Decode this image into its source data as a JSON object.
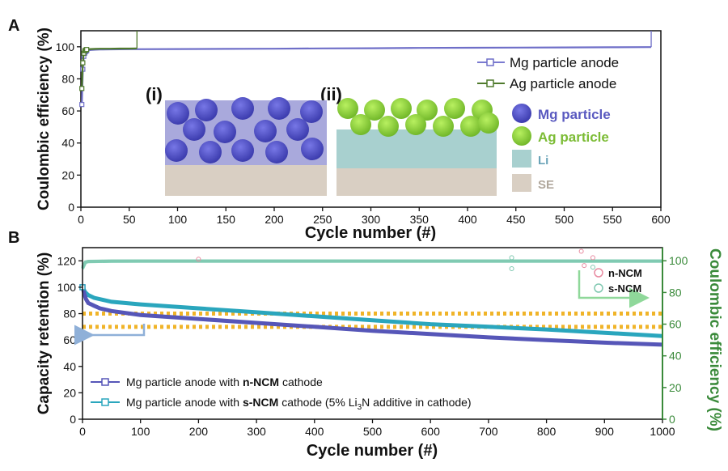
{
  "panels": {
    "a_label": "A",
    "b_label": "B"
  },
  "colors": {
    "mg": "#6f6fc8",
    "mg_dark": "#4b4bb0",
    "ag": "#4f7a2c",
    "ag_ball": "#8fd13a",
    "li": "#a8d0cf",
    "se": "#d9cfc3",
    "n_ncm": "#5656b8",
    "s_ncm": "#2aa6bd",
    "ce_line": "#72d6b6",
    "ce_axis": "#3a8a3a",
    "gold": "#f0b429",
    "arrow_blue": "#8fb0d8",
    "arrow_green": "#8fd89a",
    "n_marker": "#e88aa0",
    "s_marker": "#7fc8b0"
  },
  "chart_data": [
    {
      "type": "line",
      "panel": "A",
      "xlabel": "Cycle number (#)",
      "ylabel": "Coulombic efficiency (%)",
      "xlim": [
        0,
        600
      ],
      "ylim": [
        0,
        110
      ],
      "xticks": [
        0,
        50,
        100,
        150,
        200,
        250,
        300,
        350,
        400,
        450,
        500,
        550,
        600
      ],
      "yticks": [
        0,
        20,
        40,
        60,
        80,
        100
      ],
      "series": [
        {
          "name": "Mg particle anode",
          "x": [
            1,
            2,
            3,
            4,
            5,
            6,
            8,
            10,
            15,
            20,
            30,
            50,
            100,
            150,
            200,
            250,
            300,
            350,
            400,
            450,
            500,
            550,
            590
          ],
          "y": [
            64,
            86,
            94,
            96,
            97,
            97.5,
            97.8,
            98,
            98.2,
            98.3,
            98.4,
            98.5,
            98.6,
            98.7,
            98.8,
            99,
            99.1,
            99.3,
            99.4,
            99.5,
            99.6,
            99.7,
            99.8
          ]
        },
        {
          "name": "Ag particle anode",
          "x": [
            1,
            2,
            3,
            4,
            5,
            6,
            8,
            10,
            15,
            20,
            30,
            40,
            50,
            58
          ],
          "y": [
            74,
            90,
            96,
            97.5,
            98,
            98.3,
            98.5,
            98.6,
            98.7,
            98.8,
            98.8,
            98.9,
            98.9,
            99
          ]
        }
      ],
      "inset": {
        "label_i": "(i)",
        "label_ii": "(ii)",
        "legend": [
          "Mg particle",
          "Ag particle",
          "Li",
          "SE"
        ]
      }
    },
    {
      "type": "line",
      "panel": "B",
      "xlabel": "Cycle number (#)",
      "ylabel": "Capacity retention (%)",
      "y2label": "Coulombic efficiency (%)",
      "xlim": [
        0,
        1000
      ],
      "ylim": [
        0,
        130
      ],
      "y2lim": [
        0,
        108.3
      ],
      "xticks": [
        0,
        100,
        200,
        300,
        400,
        500,
        600,
        700,
        800,
        900,
        1000
      ],
      "yticks": [
        0,
        20,
        40,
        60,
        80,
        100,
        120
      ],
      "y2ticks": [
        0,
        20,
        40,
        60,
        80,
        100
      ],
      "series": [
        {
          "name": "Mg particle anode with n-NCM cathode",
          "legend_parts": [
            "Mg particle anode with ",
            "n-NCM",
            " cathode"
          ],
          "axis": "left",
          "x": [
            0,
            3,
            6,
            10,
            15,
            20,
            30,
            50,
            100,
            200,
            300,
            400,
            500,
            600,
            700,
            800,
            900,
            1000
          ],
          "y": [
            100,
            95,
            91,
            88,
            87,
            86,
            84,
            82,
            79,
            76,
            73,
            70,
            67,
            64.5,
            62,
            60,
            58,
            56.5
          ]
        },
        {
          "name": "Mg particle anode with s-NCM cathode (5% Li3N additive in cathode)",
          "legend_parts": [
            "Mg particle anode with ",
            "s-NCM",
            " cathode (5% Li",
            "3",
            "N additive in cathode)"
          ],
          "axis": "left",
          "x": [
            0,
            5,
            10,
            20,
            50,
            100,
            200,
            300,
            400,
            500,
            600,
            700,
            800,
            900,
            1000
          ],
          "y": [
            100,
            96,
            94,
            92,
            89,
            87,
            84,
            81,
            78,
            75,
            72,
            70,
            68,
            65.5,
            63
          ]
        },
        {
          "name": "n-NCM",
          "axis": "right",
          "x": [
            0,
            5,
            10,
            50,
            100,
            200,
            400,
            600,
            800,
            1000
          ],
          "y": [
            95,
            99,
            99.5,
            99.7,
            99.8,
            99.8,
            99.8,
            99.8,
            99.8,
            99.8
          ]
        },
        {
          "name": "s-NCM",
          "axis": "right",
          "x": [
            0,
            5,
            10,
            50,
            100,
            200,
            400,
            600,
            800,
            1000
          ],
          "y": [
            96,
            99.2,
            99.6,
            99.8,
            99.8,
            99.8,
            99.8,
            99.8,
            99.8,
            99.8
          ]
        }
      ],
      "outliers": [
        {
          "series": "n-NCM",
          "x": 200,
          "y": 101
        },
        {
          "series": "n-NCM",
          "x": 860,
          "y": 106
        },
        {
          "series": "n-NCM",
          "x": 880,
          "y": 102
        },
        {
          "series": "n-NCM",
          "x": 865,
          "y": 97
        },
        {
          "series": "s-NCM",
          "x": 740,
          "y": 102
        },
        {
          "series": "s-NCM",
          "x": 740,
          "y": 95
        },
        {
          "series": "s-NCM",
          "x": 880,
          "y": 96
        }
      ],
      "reference_lines": [
        {
          "y": 80,
          "x": [
            0,
            1000
          ]
        },
        {
          "y": 70,
          "x": [
            0,
            1000
          ]
        }
      ]
    }
  ]
}
